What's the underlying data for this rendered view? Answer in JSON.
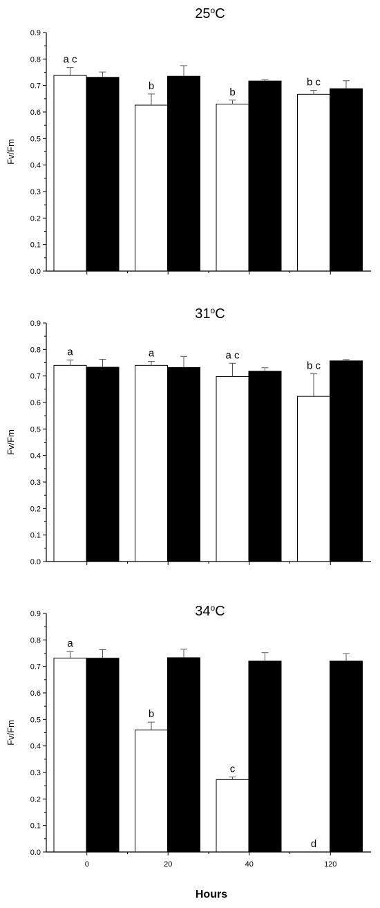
{
  "chart_data": [
    {
      "type": "bar",
      "title": "25ºC",
      "title_parts": {
        "pre": "25",
        "sup": "o",
        "post": "C"
      },
      "ylabel": "Fv/Fm",
      "xlabel": "",
      "categories": [
        "0",
        "20",
        "40",
        "120"
      ],
      "ylim": [
        0,
        0.9
      ],
      "yticks": [
        "0.0",
        "0.1",
        "0.2",
        "0.3",
        "0.4",
        "0.5",
        "0.6",
        "0.7",
        "0.8",
        "0.9"
      ],
      "show_x_ticklabels": false,
      "series": [
        {
          "fill": "#ffffff",
          "values": [
            0.738,
            0.626,
            0.63,
            0.667
          ],
          "errors": [
            0.03,
            0.042,
            0.015,
            0.015
          ],
          "labels": [
            "a c",
            "b",
            "b",
            "b c"
          ]
        },
        {
          "fill": "#000000",
          "values": [
            0.731,
            0.735,
            0.717,
            0.688
          ],
          "errors": [
            0.02,
            0.04,
            0.005,
            0.03
          ],
          "labels": [
            "",
            "",
            "",
            ""
          ]
        }
      ]
    },
    {
      "type": "bar",
      "title": "31ºC",
      "title_parts": {
        "pre": "31",
        "sup": "o",
        "post": "C"
      },
      "ylabel": "Fv/Fm",
      "xlabel": "",
      "categories": [
        "0",
        "20",
        "40",
        "120"
      ],
      "ylim": [
        0,
        0.9
      ],
      "yticks": [
        "0.0",
        "0.1",
        "0.2",
        "0.3",
        "0.4",
        "0.5",
        "0.6",
        "0.7",
        "0.8",
        "0.9"
      ],
      "show_x_ticklabels": false,
      "series": [
        {
          "fill": "#ffffff",
          "values": [
            0.74,
            0.74,
            0.698,
            0.623
          ],
          "errors": [
            0.02,
            0.015,
            0.05,
            0.085
          ],
          "labels": [
            "a",
            "a",
            "a c",
            "b c"
          ]
        },
        {
          "fill": "#000000",
          "values": [
            0.733,
            0.732,
            0.718,
            0.757
          ],
          "errors": [
            0.03,
            0.042,
            0.013,
            0.005
          ],
          "labels": [
            "",
            "",
            "",
            ""
          ]
        }
      ]
    },
    {
      "type": "bar",
      "title": "34ºC",
      "title_parts": {
        "pre": "34",
        "sup": "o",
        "post": "C"
      },
      "ylabel": "Fv/Fm",
      "xlabel": "Hours",
      "categories": [
        "0",
        "20",
        "40",
        "120"
      ],
      "ylim": [
        0,
        0.9
      ],
      "yticks": [
        "0.0",
        "0.1",
        "0.2",
        "0.3",
        "0.4",
        "0.5",
        "0.6",
        "0.7",
        "0.8",
        "0.9"
      ],
      "show_x_ticklabels": true,
      "series": [
        {
          "fill": "#ffffff",
          "values": [
            0.731,
            0.46,
            0.273,
            0.0
          ],
          "errors": [
            0.025,
            0.03,
            0.01,
            0.0
          ],
          "labels": [
            "a",
            "b",
            "c",
            "d"
          ]
        },
        {
          "fill": "#000000",
          "values": [
            0.731,
            0.733,
            0.72,
            0.72
          ],
          "errors": [
            0.032,
            0.032,
            0.032,
            0.028
          ],
          "labels": [
            "",
            "",
            "",
            ""
          ]
        }
      ]
    }
  ]
}
